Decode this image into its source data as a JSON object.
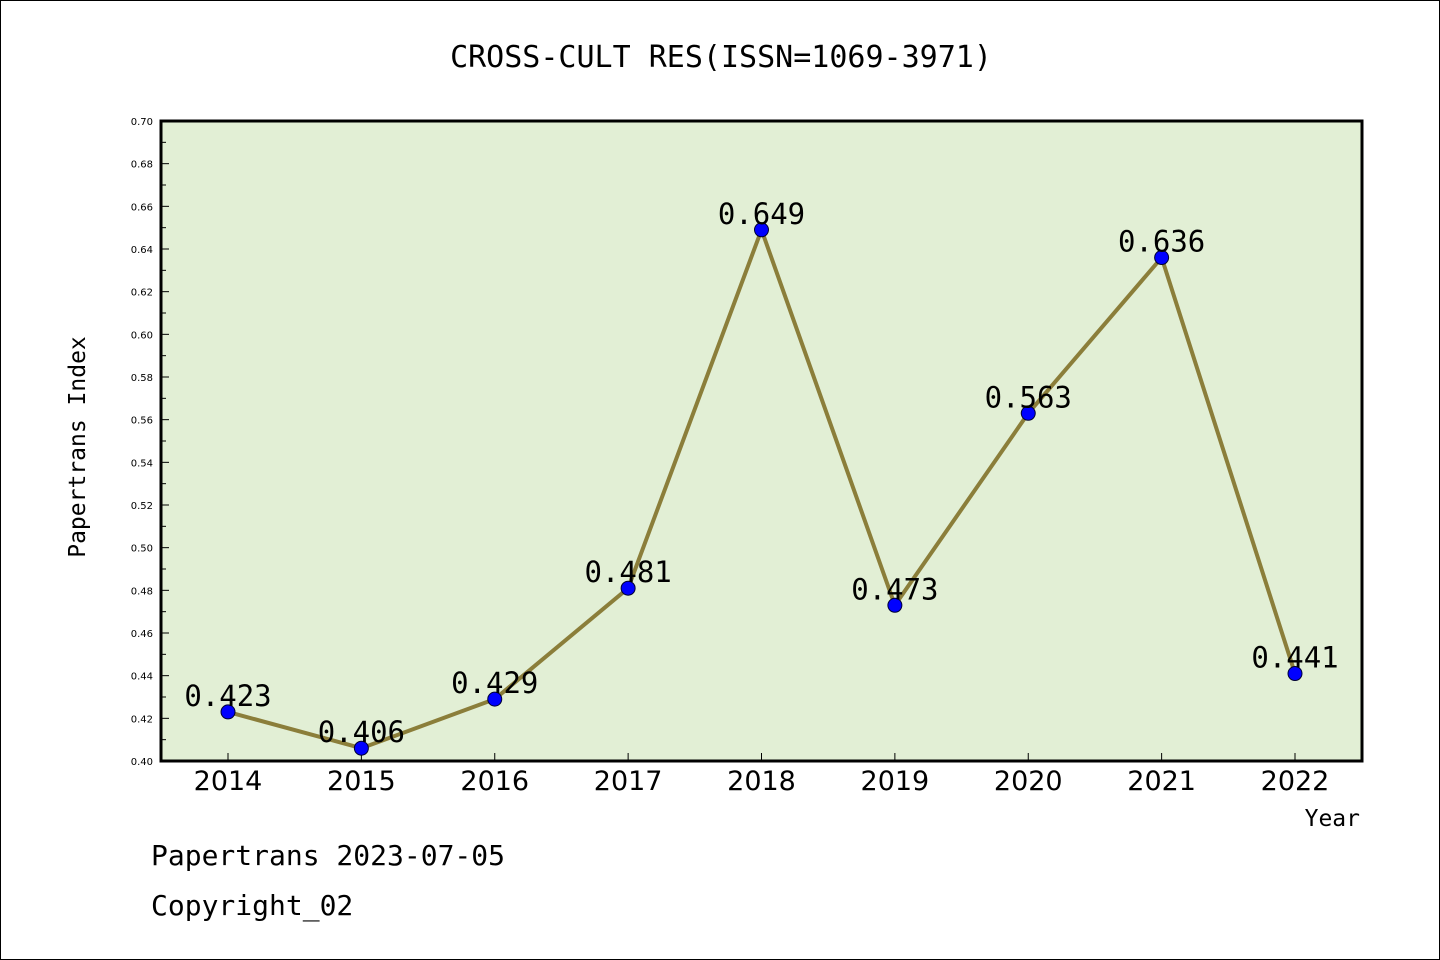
{
  "chart_data": {
    "type": "line",
    "title": "CROSS-CULT RES(ISSN=1069-3971)",
    "xlabel": "Year",
    "ylabel": "Papertrans Index",
    "categories": [
      "2014",
      "2015",
      "2016",
      "2017",
      "2018",
      "2019",
      "2020",
      "2021",
      "2022"
    ],
    "values": [
      0.423,
      0.406,
      0.429,
      0.481,
      0.649,
      0.473,
      0.563,
      0.636,
      0.441
    ],
    "data_labels": [
      "0.423",
      "0.406",
      "0.429",
      "0.481",
      "0.649",
      "0.473",
      "0.563",
      "0.636",
      "0.441"
    ],
    "ylim": [
      0.4,
      0.7
    ],
    "yticks": [
      "0.40",
      "0.42",
      "0.44",
      "0.46",
      "0.48",
      "0.50",
      "0.52",
      "0.54",
      "0.56",
      "0.58",
      "0.60",
      "0.62",
      "0.64",
      "0.66",
      "0.68",
      "0.70"
    ],
    "grid": false,
    "plot_background": "#e2efd5",
    "line_color": "#8b7e3a",
    "marker_color": "#0000ff"
  },
  "footer": {
    "line1": "Papertrans 2023-07-05",
    "line2": "Copyright_02"
  }
}
